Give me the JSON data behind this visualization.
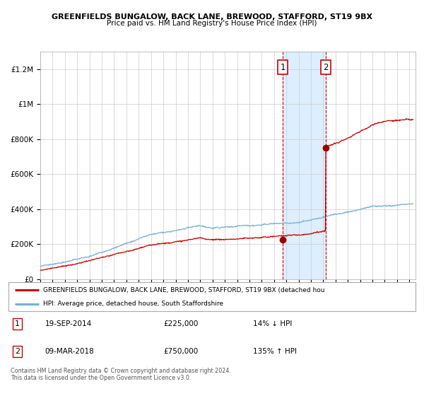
{
  "title1": "GREENFIELDS BUNGALOW, BACK LANE, BREWOOD, STAFFORD, ST19 9BX",
  "title2": "Price paid vs. HM Land Registry's House Price Index (HPI)",
  "ylim": [
    0,
    1300000
  ],
  "yticks": [
    0,
    200000,
    400000,
    600000,
    800000,
    1000000,
    1200000
  ],
  "ytick_labels": [
    "£0",
    "£200K",
    "£400K",
    "£600K",
    "£800K",
    "£1M",
    "£1.2M"
  ],
  "sale1_date": 2014.72,
  "sale1_price": 225000,
  "sale2_date": 2018.18,
  "sale2_price": 750000,
  "sale1_label": "1",
  "sale2_label": "2",
  "red_line_color": "#cc0000",
  "blue_line_color": "#7ab0d4",
  "shade_color": "#ddeeff",
  "marker_color": "#990000",
  "grid_color": "#cccccc",
  "legend1_text": "GREENFIELDS BUNGALOW, BACK LANE, BREWOOD, STAFFORD, ST19 9BX (detached hou",
  "legend2_text": "HPI: Average price, detached house, South Staffordshire",
  "table_row1": [
    "1",
    "19-SEP-2014",
    "£225,000",
    "14% ↓ HPI"
  ],
  "table_row2": [
    "2",
    "09-MAR-2018",
    "£750,000",
    "135% ↑ HPI"
  ],
  "footer": "Contains HM Land Registry data © Crown copyright and database right 2024.\nThis data is licensed under the Open Government Licence v3.0.",
  "xstart": 1995,
  "xend": 2025.5
}
